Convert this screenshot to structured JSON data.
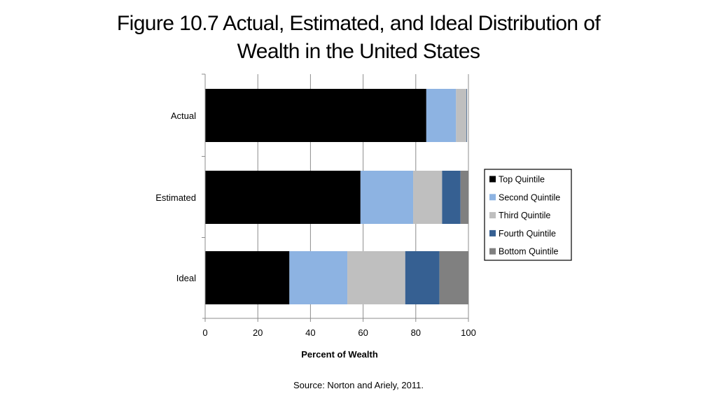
{
  "slide": {
    "title_line1": "Figure 10.7 Actual, Estimated, and Ideal Distribution of",
    "title_line2": "Wealth in the United States",
    "source": "Source: Norton and Ariely, 2011."
  },
  "chart_data": {
    "type": "bar",
    "orientation": "horizontal",
    "stacked": true,
    "title": "",
    "xlabel": "Percent of Wealth",
    "ylabel": "",
    "xlim": [
      0,
      100
    ],
    "xticks": [
      0,
      20,
      40,
      60,
      80,
      100
    ],
    "grid": "vertical",
    "legend_position": "right",
    "categories": [
      "Actual",
      "Estimated",
      "Ideal"
    ],
    "series": [
      {
        "name": "Top Quintile",
        "color": "#000000",
        "values": [
          84,
          59,
          32
        ]
      },
      {
        "name": "Second Quintile",
        "color": "#8db3e2",
        "values": [
          11.3,
          20,
          22
        ]
      },
      {
        "name": "Third Quintile",
        "color": "#bfbfbf",
        "values": [
          3.9,
          11,
          22
        ]
      },
      {
        "name": "Fourth Quintile",
        "color": "#366092",
        "values": [
          0.2,
          7,
          13
        ]
      },
      {
        "name": "Bottom Quintile",
        "color": "#808080",
        "values": [
          0.1,
          3,
          11
        ]
      }
    ]
  }
}
